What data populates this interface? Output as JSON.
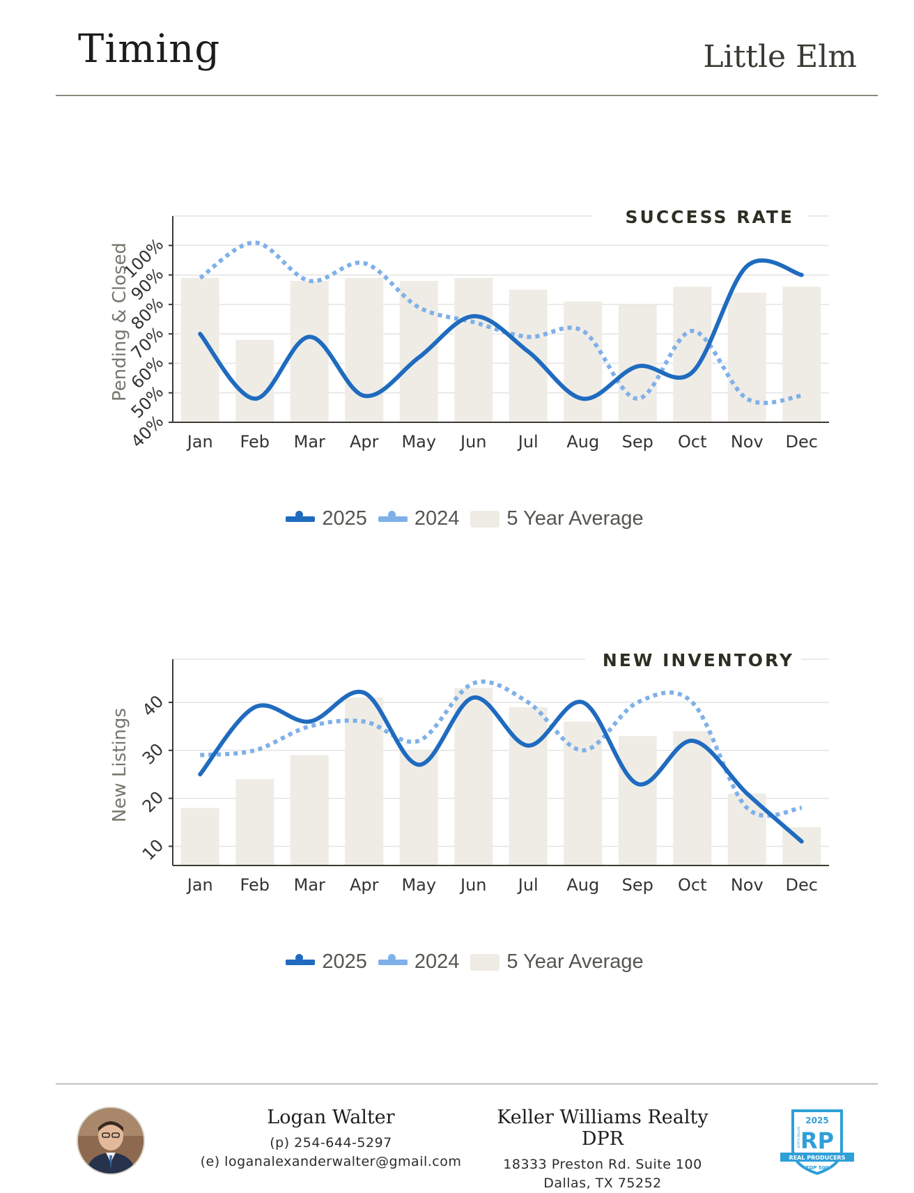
{
  "header": {
    "title": "Timing",
    "subtitle": "Little Elm"
  },
  "colors": {
    "series_2025": "#1f6bbf",
    "series_2024": "#7fb0e8",
    "average_bar": "#efece6",
    "axis": "#3a3a33",
    "grid": "#e3e3e3"
  },
  "chart_data": [
    {
      "type": "bar",
      "title": "SUCCESS RATE",
      "ylabel": "Pending & Closed",
      "xlabel": "",
      "categories": [
        "Jan",
        "Feb",
        "Mar",
        "Apr",
        "May",
        "Jun",
        "Jul",
        "Aug",
        "Sep",
        "Oct",
        "Nov",
        "Dec"
      ],
      "ylim": [
        40,
        110
      ],
      "yticks": [
        40,
        50,
        60,
        70,
        80,
        90,
        100
      ],
      "ytick_labels": [
        "40%",
        "50%",
        "60%",
        "70%",
        "80%",
        "90%",
        "100%"
      ],
      "grid": true,
      "legend_position": "bottom",
      "series": [
        {
          "name": "2025",
          "kind": "line",
          "values": [
            70,
            48,
            69,
            49,
            62,
            76,
            64,
            48,
            59,
            57,
            93,
            90
          ]
        },
        {
          "name": "2024",
          "kind": "dotted-line",
          "values": [
            89,
            101,
            88,
            94,
            79,
            74,
            69,
            71,
            48,
            71,
            48,
            49
          ]
        },
        {
          "name": "5 Year Average",
          "kind": "bar",
          "values": [
            89,
            68,
            88,
            89,
            88,
            89,
            85,
            81,
            80,
            86,
            84,
            86
          ]
        }
      ]
    },
    {
      "type": "bar",
      "title": "NEW INVENTORY",
      "ylabel": "New Listings",
      "xlabel": "",
      "categories": [
        "Jan",
        "Feb",
        "Mar",
        "Apr",
        "May",
        "Jun",
        "Jul",
        "Aug",
        "Sep",
        "Oct",
        "Nov",
        "Dec"
      ],
      "ylim": [
        6,
        49
      ],
      "yticks": [
        10,
        20,
        30,
        40
      ],
      "ytick_labels": [
        "10",
        "20",
        "30",
        "40"
      ],
      "grid": true,
      "legend_position": "bottom",
      "series": [
        {
          "name": "2025",
          "kind": "line",
          "values": [
            25,
            39,
            36,
            42,
            27,
            41,
            31,
            40,
            23,
            32,
            21,
            11
          ]
        },
        {
          "name": "2024",
          "kind": "dotted-line",
          "values": [
            29,
            30,
            35,
            36,
            32,
            44,
            40,
            30,
            40,
            40,
            18,
            18
          ]
        },
        {
          "name": "5 Year Average",
          "kind": "bar",
          "values": [
            18,
            24,
            29,
            41,
            30,
            43,
            39,
            36,
            33,
            34,
            21,
            14
          ]
        }
      ]
    }
  ],
  "legend": {
    "series_2025": "2025",
    "series_2024": "2024",
    "average": "5 Year Average"
  },
  "footer": {
    "agent_name": "Logan Walter",
    "agent_phone": "(p) 254-644-5297",
    "agent_email": "(e) loganalexanderwalter@gmail.com",
    "office_name": "Keller Williams Realty DPR",
    "office_address_1": "18333 Preston Rd. Suite 100",
    "office_address_2": "Dallas, TX 75252",
    "badge_year": "2025",
    "badge_mark": "RP",
    "badge_text": "REAL PRODUCERS",
    "badge_sub": "TOP 500",
    "badge_arc": "NORTH DALLAS"
  }
}
